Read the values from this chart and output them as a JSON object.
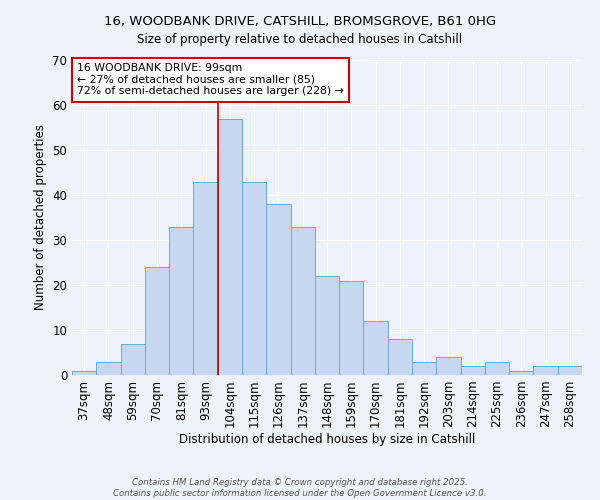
{
  "title_line1": "16, WOODBANK DRIVE, CATSHILL, BROMSGROVE, B61 0HG",
  "title_line2": "Size of property relative to detached houses in Catshill",
  "xlabel": "Distribution of detached houses by size in Catshill",
  "ylabel": "Number of detached properties",
  "bin_labels": [
    "37sqm",
    "48sqm",
    "59sqm",
    "70sqm",
    "81sqm",
    "93sqm",
    "104sqm",
    "115sqm",
    "126sqm",
    "137sqm",
    "148sqm",
    "159sqm",
    "170sqm",
    "181sqm",
    "192sqm",
    "203sqm",
    "214sqm",
    "225sqm",
    "236sqm",
    "247sqm",
    "258sqm"
  ],
  "bar_heights": [
    1,
    3,
    7,
    24,
    33,
    43,
    57,
    43,
    38,
    33,
    22,
    21,
    12,
    8,
    3,
    4,
    2,
    3,
    1,
    2,
    2
  ],
  "bar_color": "#c5d8f0",
  "bar_edge_color": "#6aaad4",
  "annotation_title": "16 WOODBANK DRIVE: 99sqm",
  "annotation_line2": "← 27% of detached houses are smaller (85)",
  "annotation_line3": "72% of semi-detached houses are larger (228) →",
  "annotation_box_color": "#ffffff",
  "annotation_box_edge": "#cc0000",
  "vline_color": "#cc0000",
  "vline_x": 5.5,
  "ylim": [
    0,
    70
  ],
  "yticks": [
    0,
    10,
    20,
    30,
    40,
    50,
    60,
    70
  ],
  "footnote1": "Contains HM Land Registry data © Crown copyright and database right 2025.",
  "footnote2": "Contains public sector information licensed under the Open Government Licence v3.0.",
  "background_color": "#eef2fb",
  "grid_color": "#ffffff"
}
